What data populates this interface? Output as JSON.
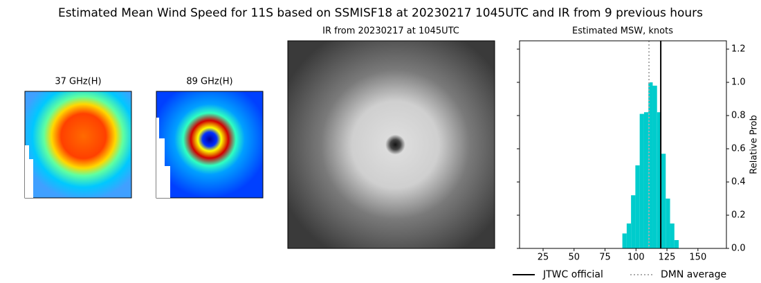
{
  "title": "Estimated Mean Wind Speed for 11S based on SSMISF18 at 20230217 1045UTC and IR from 9 previous hours",
  "panels": [
    {
      "title": "37 GHz(H)"
    },
    {
      "title": "89 GHz(H)"
    },
    {
      "title": "IR from 20230217 at 1045UTC"
    }
  ],
  "chart_data": {
    "type": "histogram",
    "title": "Estimated MSW, knots",
    "y_label": "Relative Prob",
    "bins": [
      89,
      92.5,
      96,
      99.5,
      103,
      106.5,
      110,
      113.5,
      117,
      120.5,
      124,
      127.5,
      131,
      134.5
    ],
    "values": [
      0.09,
      0.15,
      0.32,
      0.5,
      0.81,
      0.82,
      1.0,
      0.98,
      0.82,
      0.57,
      0.3,
      0.15,
      0.05
    ],
    "color": "#00cccc",
    "xlim": [
      6,
      173
    ],
    "xticks": [
      25,
      50,
      75,
      100,
      125,
      150
    ],
    "ylim": [
      0,
      1.25
    ],
    "yticks": [
      0.0,
      0.2,
      0.4,
      0.6,
      0.8,
      1.0,
      1.2
    ],
    "reference_lines": [
      {
        "name": "JTWC official",
        "value": 120,
        "color": "#000000",
        "style": "solid"
      },
      {
        "name": "DMN average",
        "value": 110.5,
        "color": "#aaaaaa",
        "style": "dotted"
      }
    ],
    "legend": "bottom"
  }
}
